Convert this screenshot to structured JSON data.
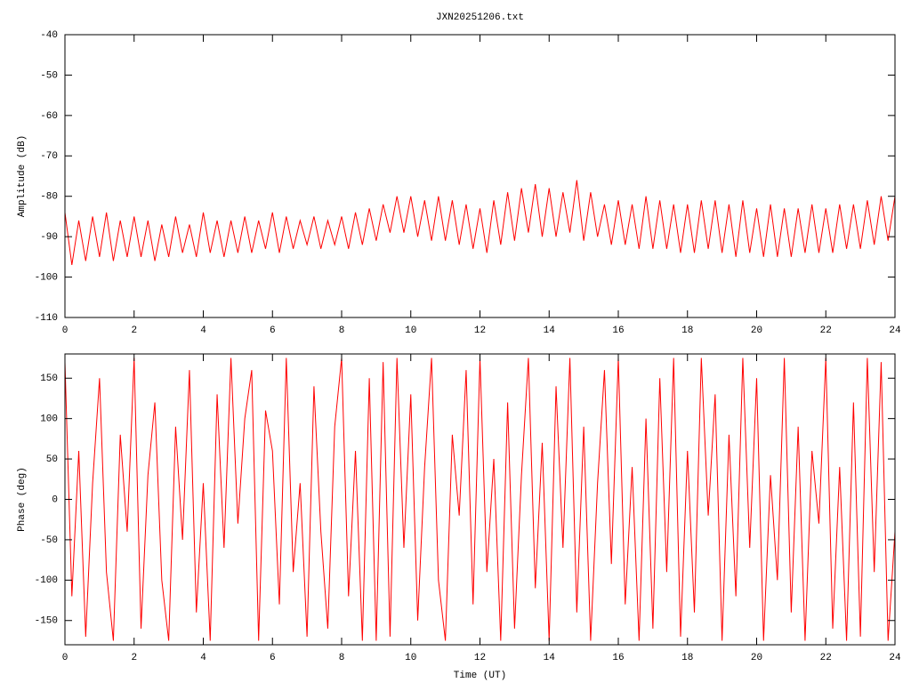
{
  "chart_data": [
    {
      "type": "line",
      "title": "JXN20251206.txt",
      "ylabel": "Amplitude (dB)",
      "xlim": [
        0,
        24
      ],
      "xticks": [
        0,
        2,
        4,
        6,
        8,
        10,
        12,
        14,
        16,
        18,
        20,
        22,
        24
      ],
      "ylim": [
        -110,
        -40
      ],
      "yticks": [
        -110,
        -100,
        -90,
        -80,
        -70,
        -60,
        -50,
        -40
      ],
      "series": [
        {
          "color": "#ff0000",
          "x": [
            0,
            0.2,
            0.4,
            0.6,
            0.8,
            1,
            1.2,
            1.4,
            1.6,
            1.8,
            2,
            2.2,
            2.4,
            2.6,
            2.8,
            3,
            3.2,
            3.4,
            3.6,
            3.8,
            4,
            4.2,
            4.4,
            4.6,
            4.8,
            5,
            5.2,
            5.4,
            5.6,
            5.8,
            6,
            6.2,
            6.4,
            6.6,
            6.8,
            7,
            7.2,
            7.4,
            7.6,
            7.8,
            8,
            8.2,
            8.4,
            8.6,
            8.8,
            9,
            9.2,
            9.4,
            9.6,
            9.8,
            10,
            10.2,
            10.4,
            10.6,
            10.8,
            11,
            11.2,
            11.4,
            11.6,
            11.8,
            12,
            12.2,
            12.4,
            12.6,
            12.8,
            13,
            13.2,
            13.4,
            13.6,
            13.8,
            14,
            14.2,
            14.4,
            14.6,
            14.8,
            15,
            15.2,
            15.4,
            15.6,
            15.8,
            16,
            16.2,
            16.4,
            16.6,
            16.8,
            17,
            17.2,
            17.4,
            17.6,
            17.8,
            18,
            18.2,
            18.4,
            18.6,
            18.8,
            19,
            19.2,
            19.4,
            19.6,
            19.8,
            20,
            20.2,
            20.4,
            20.6,
            20.8,
            21,
            21.2,
            21.4,
            21.6,
            21.8,
            22,
            22.2,
            22.4,
            22.6,
            22.8,
            23,
            23.2,
            23.4,
            23.6,
            23.8,
            24
          ],
          "values": [
            -84,
            -97,
            -86,
            -96,
            -85,
            -95,
            -84,
            -96,
            -86,
            -95,
            -85,
            -95,
            -86,
            -96,
            -87,
            -95,
            -85,
            -94,
            -87,
            -95,
            -84,
            -94,
            -86,
            -95,
            -86,
            -94,
            -85,
            -94,
            -86,
            -93,
            -84,
            -94,
            -85,
            -93,
            -86,
            -92,
            -85,
            -93,
            -86,
            -92,
            -85,
            -93,
            -84,
            -92,
            -83,
            -91,
            -82,
            -89,
            -80,
            -89,
            -80,
            -90,
            -81,
            -91,
            -80,
            -91,
            -81,
            -92,
            -82,
            -93,
            -83,
            -94,
            -81,
            -92,
            -79,
            -91,
            -78,
            -89,
            -77,
            -90,
            -78,
            -90,
            -79,
            -89,
            -76,
            -91,
            -79,
            -90,
            -82,
            -92,
            -81,
            -92,
            -82,
            -93,
            -80,
            -93,
            -81,
            -93,
            -82,
            -94,
            -82,
            -94,
            -81,
            -93,
            -81,
            -94,
            -82,
            -95,
            -81,
            -94,
            -83,
            -95,
            -82,
            -95,
            -83,
            -95,
            -83,
            -94,
            -82,
            -94,
            -83,
            -94,
            -82,
            -93,
            -82,
            -93,
            -81,
            -92,
            -80,
            -91,
            -80
          ]
        }
      ]
    },
    {
      "type": "line",
      "ylabel": "Phase (deg)",
      "xlabel": "Time (UT)",
      "xlim": [
        0,
        24
      ],
      "xticks": [
        0,
        2,
        4,
        6,
        8,
        10,
        12,
        14,
        16,
        18,
        20,
        22,
        24
      ],
      "ylim": [
        -180,
        180
      ],
      "yticks": [
        -150,
        -100,
        -50,
        0,
        50,
        100,
        150
      ],
      "series": [
        {
          "color": "#ff0000",
          "x": [
            0,
            0.2,
            0.4,
            0.6,
            0.8,
            1,
            1.2,
            1.4,
            1.6,
            1.8,
            2,
            2.2,
            2.4,
            2.6,
            2.8,
            3,
            3.2,
            3.4,
            3.6,
            3.8,
            4,
            4.2,
            4.4,
            4.6,
            4.8,
            5,
            5.2,
            5.4,
            5.6,
            5.8,
            6,
            6.2,
            6.4,
            6.6,
            6.8,
            7,
            7.2,
            7.4,
            7.6,
            7.8,
            8,
            8.2,
            8.4,
            8.6,
            8.8,
            9,
            9.2,
            9.4,
            9.6,
            9.8,
            10,
            10.2,
            10.4,
            10.6,
            10.8,
            11,
            11.2,
            11.4,
            11.6,
            11.8,
            12,
            12.2,
            12.4,
            12.6,
            12.8,
            13,
            13.2,
            13.4,
            13.6,
            13.8,
            14,
            14.2,
            14.4,
            14.6,
            14.8,
            15,
            15.2,
            15.4,
            15.6,
            15.8,
            16,
            16.2,
            16.4,
            16.6,
            16.8,
            17,
            17.2,
            17.4,
            17.6,
            17.8,
            18,
            18.2,
            18.4,
            18.6,
            18.8,
            19,
            19.2,
            19.4,
            19.6,
            19.8,
            20,
            20.2,
            20.4,
            20.6,
            20.8,
            21,
            21.2,
            21.4,
            21.6,
            21.8,
            22,
            22.2,
            22.4,
            22.6,
            22.8,
            23,
            23.2,
            23.4,
            23.6,
            23.8,
            24
          ],
          "values": [
            170,
            -120,
            60,
            -170,
            20,
            150,
            -90,
            -175,
            80,
            -40,
            175,
            -160,
            30,
            120,
            -100,
            -175,
            90,
            -50,
            160,
            -140,
            20,
            -175,
            130,
            -60,
            175,
            -30,
            100,
            160,
            -175,
            110,
            60,
            -130,
            175,
            -90,
            20,
            -170,
            140,
            -40,
            -160,
            90,
            175,
            -120,
            60,
            -175,
            150,
            -175,
            170,
            -170,
            175,
            -60,
            130,
            -150,
            40,
            175,
            -100,
            -175,
            80,
            -20,
            160,
            -130,
            175,
            -90,
            50,
            -175,
            120,
            -160,
            30,
            175,
            -110,
            70,
            -175,
            140,
            -60,
            175,
            -140,
            90,
            -175,
            20,
            160,
            -80,
            175,
            -130,
            40,
            -175,
            100,
            -160,
            150,
            -90,
            175,
            -170,
            60,
            -140,
            175,
            -20,
            130,
            -175,
            80,
            -120,
            175,
            -60,
            150,
            -175,
            30,
            -100,
            175,
            -140,
            90,
            -175,
            60,
            -30,
            175,
            -160,
            40,
            -175,
            120,
            -170,
            175,
            -90,
            170,
            -175,
            -40
          ]
        }
      ]
    }
  ]
}
